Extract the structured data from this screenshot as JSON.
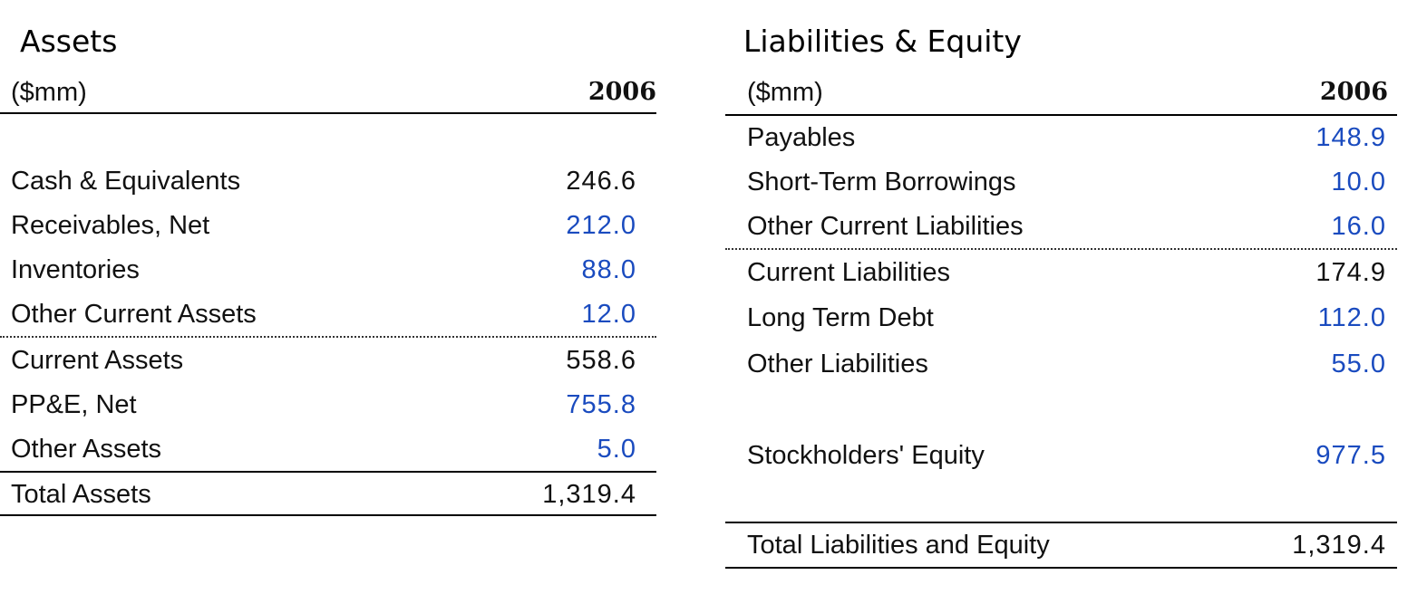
{
  "assets": {
    "title": "Assets",
    "unit": "($mm)",
    "year": "2006",
    "rows": [
      {
        "label": "Cash & Equivalents",
        "value": "246.6",
        "kind": "calc"
      },
      {
        "label": "Receivables, Net",
        "value": "212.0",
        "kind": "input"
      },
      {
        "label": "Inventories",
        "value": "88.0",
        "kind": "input"
      },
      {
        "label": "Other Current Assets",
        "value": "12.0",
        "kind": "input"
      },
      {
        "label": "Current Assets",
        "value": "558.6",
        "kind": "calc"
      },
      {
        "label": "PP&E, Net",
        "value": "755.8",
        "kind": "input"
      },
      {
        "label": "Other Assets",
        "value": "5.0",
        "kind": "input"
      },
      {
        "label": "Total Assets",
        "value": "1,319.4",
        "kind": "calc"
      }
    ]
  },
  "liabilities": {
    "title": "Liabilities & Equity",
    "unit": "($mm)",
    "year": "2006",
    "rows": [
      {
        "label": "Payables",
        "value": "148.9",
        "kind": "input"
      },
      {
        "label": "Short-Term Borrowings",
        "value": "10.0",
        "kind": "input"
      },
      {
        "label": "Other Current Liabilities",
        "value": "16.0",
        "kind": "input"
      },
      {
        "label": "Current Liabilities",
        "value": "174.9",
        "kind": "calc"
      },
      {
        "label": "Long Term Debt",
        "value": "112.0",
        "kind": "input"
      },
      {
        "label": "Other Liabilities",
        "value": "55.0",
        "kind": "input"
      },
      {
        "label": "Stockholders' Equity",
        "value": "977.5",
        "kind": "input"
      },
      {
        "label": "Total Liabilities and Equity",
        "value": "1,319.4",
        "kind": "calc"
      }
    ]
  },
  "colors": {
    "input_value": "#1a4bbf",
    "calc_value": "#111111"
  }
}
